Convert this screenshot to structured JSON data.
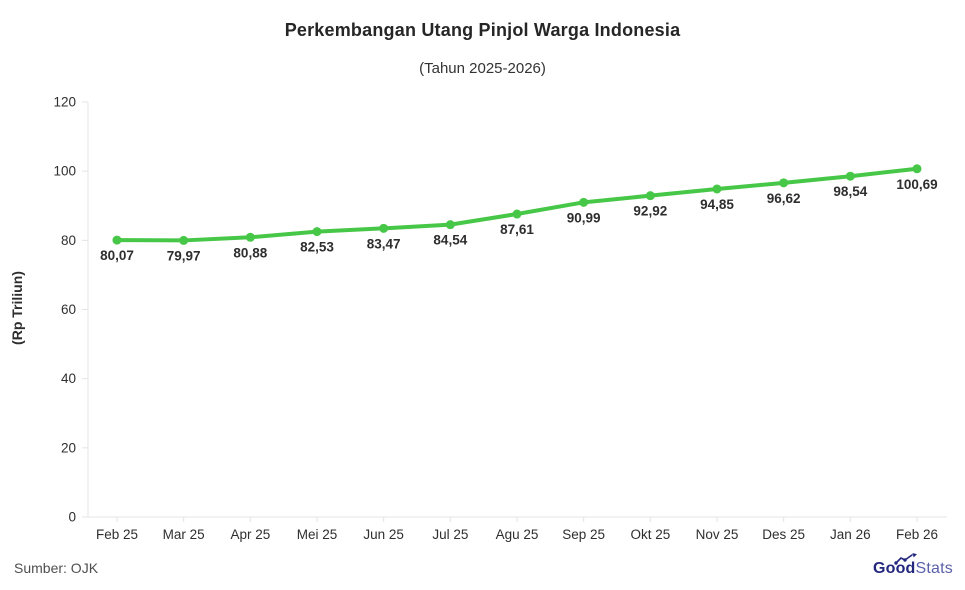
{
  "header": {
    "title": "Perkembangan Utang Pinjol Warga Indonesia",
    "subtitle": "(Tahun 2025-2026)"
  },
  "chart_data": {
    "type": "line",
    "title": "Perkembangan Utang Pinjol Warga Indonesia",
    "subtitle": "(Tahun 2025-2026)",
    "categories": [
      "Feb 25",
      "Mar 25",
      "Apr 25",
      "Mei 25",
      "Jun 25",
      "Jul 25",
      "Agu 25",
      "Sep 25",
      "Okt 25",
      "Nov 25",
      "Des 25",
      "Jan 26",
      "Feb 26"
    ],
    "values": [
      80.07,
      79.97,
      80.88,
      82.53,
      83.47,
      84.54,
      87.61,
      90.99,
      92.92,
      94.85,
      96.62,
      98.54,
      100.69
    ],
    "point_labels": [
      "80,07",
      "79,97",
      "80,88",
      "82,53",
      "83,47",
      "84,54",
      "87,61",
      "90,99",
      "92,92",
      "94,85",
      "96,62",
      "98,54",
      "100,69"
    ],
    "xlabel": "",
    "ylabel": "(Rp Triliun)",
    "ylim": [
      0,
      120
    ],
    "yticks": [
      0,
      20,
      40,
      60,
      80,
      100,
      120
    ],
    "grid": false,
    "legend_position": "none",
    "line_color": "#47c747",
    "axis_color": "#e4e4e4",
    "tick_label_color": "#2f2f2f",
    "data_label_color": "#2e2e2e"
  },
  "footer": {
    "source": "Sumber: OJK",
    "logo": {
      "bold": "Good",
      "light": "Stats",
      "color": "#23277e"
    }
  }
}
